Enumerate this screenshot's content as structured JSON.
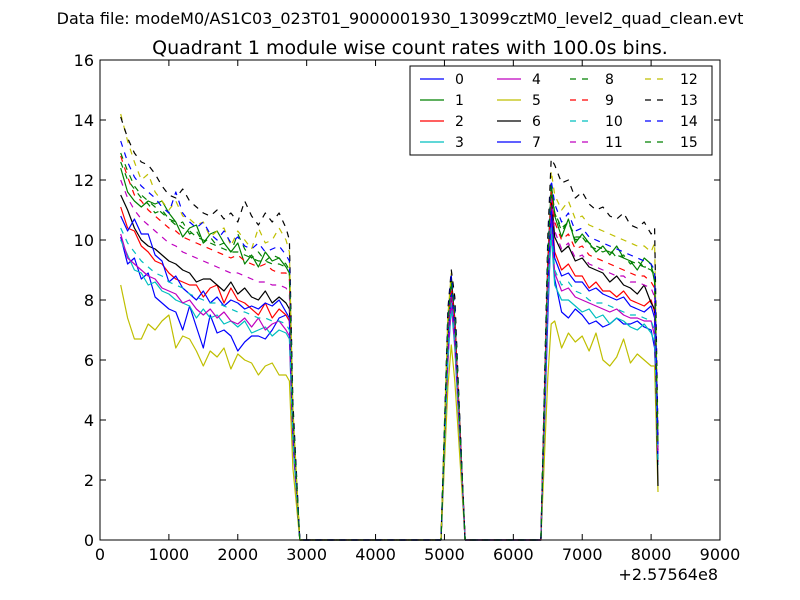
{
  "header": {
    "file_label": "Data file: modeM0/AS1C03_023T01_9000001930_13099cztM0_level2_quad_clean.evt"
  },
  "chart_data": {
    "type": "line",
    "title": "Quadrant 1 module wise count rates with 100.0s bins.",
    "xlabel": "",
    "ylabel": "",
    "x_offset_label": "+2.57564e8",
    "xlim": [
      0,
      9000
    ],
    "ylim": [
      0,
      16
    ],
    "x_ticks": [
      0,
      1000,
      2000,
      3000,
      4000,
      5000,
      6000,
      7000,
      8000,
      9000
    ],
    "y_ticks": [
      0,
      2,
      4,
      6,
      8,
      10,
      12,
      14,
      16
    ],
    "grid": false,
    "legend_position": "top-right",
    "x": [
      300,
      400,
      500,
      600,
      700,
      800,
      900,
      1000,
      1100,
      1200,
      1300,
      1400,
      1500,
      1600,
      1700,
      1800,
      1900,
      2000,
      2100,
      2200,
      2300,
      2400,
      2500,
      2600,
      2700,
      2750,
      2800,
      2900,
      3000,
      3500,
      4000,
      4500,
      4950,
      5050,
      5100,
      5150,
      5200,
      5300,
      5500,
      6000,
      6400,
      6500,
      6550,
      6600,
      6700,
      6800,
      6900,
      7000,
      7100,
      7200,
      7300,
      7400,
      7500,
      7600,
      7700,
      7800,
      7900,
      8000,
      8050,
      8100
    ],
    "series": [
      {
        "name": "0",
        "color": "#0000ff",
        "dash": false,
        "values": [
          10.1,
          9.2,
          9.4,
          8.7,
          8.9,
          8.1,
          7.9,
          7.7,
          7.6,
          7.0,
          7.8,
          7.1,
          6.4,
          7.5,
          6.9,
          7.0,
          6.8,
          6.3,
          6.6,
          6.8,
          6.8,
          6.7,
          7.0,
          7.4,
          7.5,
          7.3,
          3.8,
          0,
          0,
          0,
          0,
          0,
          0,
          6.2,
          8.0,
          6.7,
          4.5,
          0,
          0,
          0,
          0,
          7.4,
          10.6,
          8.7,
          7.6,
          7.4,
          7.7,
          7.5,
          7.2,
          7.3,
          7.1,
          7.2,
          7.4,
          7.2,
          7.2,
          7.3,
          7.1,
          7.0,
          6.4,
          2.8
        ]
      },
      {
        "name": "1",
        "color": "#008000",
        "dash": false,
        "values": [
          12.4,
          11.6,
          11.3,
          11.1,
          11.3,
          11.2,
          11.3,
          10.9,
          10.6,
          10.1,
          10.4,
          10.5,
          9.9,
          10.2,
          10.3,
          9.9,
          9.6,
          9.9,
          9.2,
          9.5,
          9.1,
          9.6,
          9.3,
          9.4,
          9.1,
          8.9,
          4.0,
          0,
          0,
          0,
          0,
          0,
          0,
          7.0,
          8.6,
          7.4,
          4.9,
          0,
          0,
          0,
          0,
          9.3,
          11.8,
          10.8,
          10.1,
          10.7,
          9.9,
          10.2,
          9.9,
          9.6,
          9.8,
          9.5,
          9.8,
          9.4,
          9.3,
          9.0,
          9.4,
          9.2,
          8.6,
          3.0
        ]
      },
      {
        "name": "2",
        "color": "#ff0000",
        "dash": false,
        "values": [
          11.1,
          10.4,
          10.3,
          9.8,
          9.6,
          9.3,
          9.2,
          8.9,
          8.7,
          8.6,
          8.5,
          8.5,
          8.1,
          8.4,
          8.5,
          7.9,
          8.4,
          8.0,
          7.9,
          7.7,
          7.5,
          7.9,
          7.4,
          7.7,
          7.5,
          7.3,
          3.6,
          0,
          0,
          0,
          0,
          0,
          0,
          6.3,
          8.3,
          6.9,
          4.7,
          0,
          0,
          0,
          0,
          8.7,
          11.2,
          9.6,
          9.0,
          9.2,
          8.8,
          8.8,
          8.4,
          8.6,
          8.3,
          8.3,
          8.1,
          8.3,
          8.0,
          7.9,
          7.8,
          8.0,
          7.6,
          2.7
        ]
      },
      {
        "name": "3",
        "color": "#00bfbf",
        "dash": false,
        "values": [
          10.0,
          9.5,
          9.0,
          8.9,
          8.5,
          8.6,
          8.3,
          8.2,
          8.0,
          7.9,
          7.8,
          7.4,
          7.7,
          7.4,
          7.5,
          7.2,
          7.3,
          7.1,
          7.3,
          6.9,
          7.0,
          7.1,
          6.8,
          7.0,
          6.9,
          6.7,
          3.2,
          0,
          0,
          0,
          0,
          0,
          0,
          5.9,
          7.8,
          6.4,
          4.3,
          0,
          0,
          0,
          0,
          7.9,
          10.2,
          8.5,
          8.0,
          8.0,
          7.8,
          7.6,
          7.7,
          7.4,
          7.5,
          7.2,
          7.4,
          7.3,
          7.1,
          7.0,
          7.2,
          6.9,
          6.6,
          2.5
        ]
      },
      {
        "name": "4",
        "color": "#bf00bf",
        "dash": false,
        "values": [
          10.2,
          9.4,
          9.2,
          9.0,
          8.8,
          8.7,
          8.4,
          8.3,
          8.2,
          7.9,
          8.0,
          7.7,
          7.5,
          7.7,
          7.4,
          7.6,
          7.3,
          7.2,
          7.4,
          7.1,
          7.4,
          7.0,
          7.2,
          7.3,
          7.0,
          6.8,
          3.3,
          0,
          0,
          0,
          0,
          0,
          0,
          6.0,
          7.9,
          6.5,
          4.4,
          0,
          0,
          0,
          0,
          8.1,
          10.6,
          8.9,
          8.3,
          8.4,
          8.1,
          8.0,
          7.9,
          7.8,
          7.7,
          7.6,
          7.7,
          7.5,
          7.4,
          7.4,
          7.3,
          7.3,
          6.8,
          2.6
        ]
      },
      {
        "name": "5",
        "color": "#bfbf00",
        "dash": false,
        "values": [
          8.5,
          7.4,
          6.7,
          6.7,
          7.2,
          7.0,
          7.3,
          7.5,
          6.4,
          6.8,
          6.7,
          6.3,
          5.8,
          6.3,
          6.1,
          6.4,
          5.7,
          6.2,
          6.0,
          5.9,
          5.5,
          5.8,
          5.9,
          5.5,
          5.5,
          5.3,
          2.4,
          0,
          0,
          0,
          0,
          0,
          0,
          5.1,
          6.5,
          5.3,
          3.6,
          0,
          0,
          0,
          0,
          5.4,
          7.2,
          7.3,
          6.4,
          6.9,
          6.6,
          6.8,
          6.3,
          6.9,
          6.0,
          5.8,
          6.1,
          6.7,
          5.9,
          6.2,
          6.0,
          5.8,
          5.8,
          1.6
        ]
      },
      {
        "name": "6",
        "color": "#000000",
        "dash": false,
        "values": [
          11.5,
          11.0,
          10.4,
          10.0,
          9.8,
          9.7,
          9.5,
          9.3,
          9.2,
          9.0,
          8.9,
          8.6,
          8.7,
          8.7,
          8.5,
          8.3,
          8.6,
          8.2,
          8.4,
          8.1,
          8.0,
          8.3,
          7.9,
          8.1,
          7.9,
          7.7,
          3.8,
          0,
          0,
          0,
          0,
          0,
          0,
          6.8,
          8.8,
          7.3,
          4.9,
          0,
          0,
          0,
          0,
          8.9,
          11.5,
          10.1,
          9.6,
          9.8,
          9.3,
          9.4,
          9.1,
          9.0,
          8.9,
          8.6,
          8.8,
          8.5,
          8.4,
          8.2,
          8.5,
          7.9,
          7.7,
          1.8
        ]
      },
      {
        "name": "7",
        "color": "#0000ff",
        "dash": false,
        "values": [
          10.8,
          10.3,
          10.7,
          10.2,
          10.2,
          9.5,
          9.3,
          8.6,
          8.8,
          8.4,
          8.2,
          8.0,
          8.3,
          7.9,
          8.1,
          7.8,
          8.0,
          7.9,
          7.7,
          7.8,
          7.7,
          7.9,
          7.8,
          8.0,
          7.6,
          7.4,
          3.6,
          0,
          0,
          0,
          0,
          0,
          0,
          6.5,
          8.4,
          7.0,
          4.7,
          0,
          0,
          0,
          0,
          8.5,
          11.0,
          9.4,
          8.8,
          8.9,
          8.6,
          8.6,
          8.3,
          8.4,
          8.2,
          8.1,
          8.0,
          8.1,
          7.8,
          7.7,
          7.6,
          7.8,
          7.4,
          2.7
        ]
      },
      {
        "name": "8",
        "color": "#008000",
        "dash": true,
        "values": [
          12.6,
          12.0,
          11.7,
          11.4,
          11.2,
          10.9,
          11.0,
          10.7,
          10.5,
          10.6,
          10.2,
          10.3,
          9.9,
          10.1,
          9.8,
          9.9,
          9.6,
          10.2,
          9.7,
          9.4,
          9.6,
          9.3,
          9.5,
          9.4,
          9.2,
          9.0,
          4.1,
          0,
          0,
          0,
          0,
          0,
          0,
          7.1,
          8.7,
          7.5,
          5.0,
          0,
          0,
          0,
          0,
          9.4,
          11.9,
          10.9,
          10.3,
          10.6,
          10.0,
          10.1,
          9.8,
          9.7,
          9.6,
          9.7,
          9.4,
          9.5,
          9.2,
          9.3,
          9.1,
          9.0,
          8.8,
          3.1
        ]
      },
      {
        "name": "9",
        "color": "#ff0000",
        "dash": true,
        "values": [
          12.8,
          12.1,
          11.5,
          11.3,
          11.0,
          10.8,
          10.6,
          10.4,
          10.3,
          10.1,
          10.0,
          9.9,
          9.8,
          9.7,
          9.6,
          9.5,
          9.4,
          9.5,
          9.3,
          9.2,
          9.1,
          9.2,
          9.0,
          8.9,
          8.9,
          8.7,
          4.0,
          0,
          0,
          0,
          0,
          0,
          0,
          7.0,
          8.5,
          7.3,
          4.9,
          0,
          0,
          0,
          0,
          9.2,
          11.6,
          10.6,
          10.0,
          10.2,
          9.7,
          9.8,
          9.5,
          9.4,
          9.3,
          9.2,
          9.1,
          9.0,
          8.9,
          8.8,
          8.8,
          8.6,
          8.4,
          3.0
        ]
      },
      {
        "name": "10",
        "color": "#00bfbf",
        "dash": true,
        "values": [
          10.4,
          9.9,
          9.6,
          9.3,
          9.1,
          8.9,
          8.8,
          8.6,
          8.5,
          8.4,
          8.2,
          8.1,
          8.0,
          7.9,
          7.9,
          7.8,
          7.7,
          7.6,
          7.6,
          7.5,
          7.4,
          7.4,
          7.3,
          7.3,
          7.2,
          7.0,
          3.4,
          0,
          0,
          0,
          0,
          0,
          0,
          6.1,
          7.9,
          6.6,
          4.5,
          0,
          0,
          0,
          0,
          8.2,
          10.4,
          9.0,
          8.5,
          8.6,
          8.3,
          8.2,
          8.0,
          7.9,
          7.9,
          7.8,
          7.7,
          7.6,
          7.5,
          7.5,
          7.4,
          7.3,
          7.0,
          2.6
        ]
      },
      {
        "name": "11",
        "color": "#bf00bf",
        "dash": true,
        "values": [
          12.0,
          11.4,
          11.0,
          10.7,
          10.5,
          10.3,
          10.1,
          9.9,
          9.8,
          9.6,
          9.5,
          9.4,
          9.3,
          9.2,
          9.1,
          9.0,
          8.9,
          8.9,
          8.8,
          8.7,
          8.6,
          8.6,
          8.5,
          8.5,
          8.4,
          8.2,
          3.9,
          0,
          0,
          0,
          0,
          0,
          0,
          6.8,
          8.4,
          7.1,
          4.8,
          0,
          0,
          0,
          0,
          9.0,
          11.4,
          10.3,
          9.7,
          9.9,
          9.4,
          9.5,
          9.2,
          9.1,
          9.0,
          8.9,
          8.8,
          8.8,
          8.6,
          8.6,
          8.5,
          8.4,
          8.1,
          2.9
        ]
      },
      {
        "name": "12",
        "color": "#bfbf00",
        "dash": true,
        "values": [
          14.2,
          13.3,
          12.6,
          12.0,
          12.2,
          11.6,
          11.3,
          11.0,
          11.3,
          10.8,
          10.7,
          10.5,
          10.6,
          10.1,
          10.3,
          10.4,
          9.8,
          10.3,
          10.0,
          9.7,
          10.4,
          9.9,
          10.0,
          10.4,
          10.0,
          9.6,
          4.4,
          0,
          0,
          0,
          0,
          0,
          0,
          7.5,
          8.9,
          7.9,
          5.2,
          0,
          0,
          0,
          0,
          9.8,
          12.3,
          11.5,
          11.0,
          11.3,
          10.7,
          10.8,
          10.5,
          10.4,
          10.3,
          10.2,
          10.1,
          10.0,
          9.9,
          9.8,
          9.8,
          9.6,
          9.9,
          3.3
        ]
      },
      {
        "name": "13",
        "color": "#000000",
        "dash": true,
        "values": [
          14.1,
          13.4,
          12.9,
          12.6,
          12.5,
          12.2,
          11.8,
          11.5,
          11.4,
          11.7,
          11.3,
          11.1,
          10.9,
          10.8,
          11.0,
          10.7,
          10.9,
          10.6,
          11.3,
          10.8,
          10.5,
          10.9,
          10.6,
          10.9,
          10.4,
          10.0,
          4.6,
          0,
          0,
          0,
          0,
          0,
          0,
          7.7,
          9.0,
          8.1,
          5.3,
          0,
          0,
          0,
          0,
          10.1,
          12.7,
          12.5,
          11.9,
          12.0,
          11.4,
          11.6,
          11.2,
          11.0,
          11.1,
          10.8,
          10.7,
          10.9,
          10.5,
          10.4,
          10.6,
          10.2,
          10.4,
          3.5
        ]
      },
      {
        "name": "14",
        "color": "#0000ff",
        "dash": true,
        "values": [
          13.3,
          12.6,
          12.1,
          11.8,
          11.6,
          11.4,
          11.1,
          10.9,
          11.6,
          10.9,
          10.6,
          10.4,
          10.6,
          10.2,
          10.0,
          10.3,
          9.9,
          10.1,
          9.8,
          9.7,
          9.9,
          9.6,
          9.7,
          9.8,
          9.5,
          9.3,
          4.2,
          0,
          0,
          0,
          0,
          0,
          0,
          7.3,
          8.8,
          7.7,
          5.1,
          0,
          0,
          0,
          0,
          9.6,
          12.0,
          11.2,
          10.6,
          10.9,
          10.3,
          10.4,
          10.1,
          10.0,
          9.9,
          9.8,
          9.7,
          9.6,
          9.5,
          9.4,
          9.3,
          9.2,
          9.0,
          3.2
        ]
      },
      {
        "name": "15",
        "color": "#008000",
        "dash": true,
        "values": [
          12.9,
          12.3,
          11.8,
          11.5,
          11.3,
          11.1,
          10.9,
          10.7,
          10.6,
          10.4,
          10.3,
          10.1,
          10.0,
          9.9,
          9.8,
          9.7,
          9.6,
          9.6,
          9.5,
          9.4,
          9.3,
          9.3,
          9.2,
          9.2,
          9.1,
          8.9,
          4.1,
          0,
          0,
          0,
          0,
          0,
          0,
          7.2,
          8.6,
          7.5,
          5.0,
          0,
          0,
          0,
          0,
          9.4,
          11.8,
          10.9,
          10.4,
          10.6,
          10.1,
          10.1,
          9.9,
          9.8,
          9.7,
          9.6,
          9.5,
          9.4,
          9.3,
          9.2,
          9.1,
          9.1,
          8.8,
          3.1
        ]
      }
    ]
  }
}
